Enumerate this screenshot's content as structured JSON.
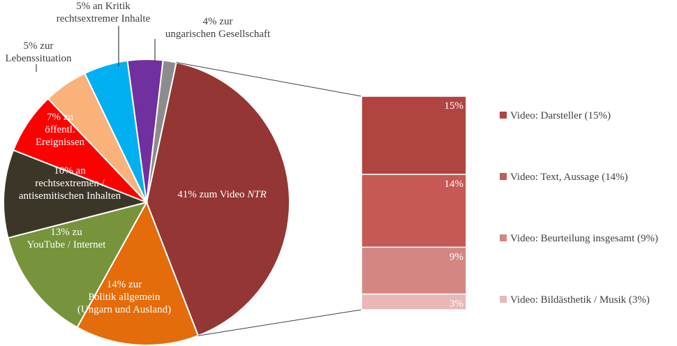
{
  "chart_data": {
    "type": "pie",
    "title": "",
    "slices": [
      {
        "label": "41% zum Video NTR",
        "label_lines": [
          "41% zum Video <i>NTR</i>"
        ],
        "value": 41,
        "color": "#943634",
        "label_color": "#ffffff",
        "label_inside": true
      },
      {
        "label": "14% zur Politik allgemein (Ungarn und Ausland)",
        "label_lines": [
          "14% zur",
          "Politik allgemein",
          "(Ungarn und Ausland)"
        ],
        "value": 14,
        "color": "#e46c0a",
        "label_color": "#ffffff",
        "label_inside": true
      },
      {
        "label": "13% zu YouTube / Internet",
        "label_lines": [
          "13% zu",
          "YouTube / Internet"
        ],
        "value": 13,
        "color": "#77933c",
        "label_color": "#ffffff",
        "label_inside": true
      },
      {
        "label": "10% an rechtsextremen / antisemitischen Inhalten",
        "label_lines": [
          "10% an",
          "rechtsextremen /",
          "antisemitischen  Inhalten"
        ],
        "value": 10,
        "color": "#3b3627",
        "label_color": "#ffffff",
        "label_inside": true
      },
      {
        "label": "7% zu öffentl. Ereignissen",
        "label_lines": [
          "7% zu",
          "öffentl.",
          "Ereignissen"
        ],
        "value": 7,
        "color": "#ff0000",
        "label_color": "#ffffff",
        "label_inside": true
      },
      {
        "label": "5% zur Lebenssituation",
        "label_lines": [
          "5% zur",
          "Lebenssituation"
        ],
        "value": 5,
        "color": "#fab17a",
        "label_color": "#404040",
        "label_inside": false
      },
      {
        "label": "5% an Kritik rechtsextremer Inhalte",
        "label_lines": [
          "5% an Kritik",
          "rechtsextremer  Inhalte"
        ],
        "value": 5,
        "color": "#00b0f0",
        "label_color": "#404040",
        "label_inside": false
      },
      {
        "label": "4% zur ungarischen Gesellschaft",
        "label_lines": [
          "4% zur",
          "ungarischen Gesellschaft"
        ],
        "value": 4,
        "color": "#7030a0",
        "label_color": "#404040",
        "label_inside": false
      },
      {
        "label": "",
        "label_lines": [],
        "value": 1.5,
        "color": "#8c8c8c",
        "label_color": "#404040",
        "label_inside": false
      }
    ],
    "breakdown": {
      "type": "stacked-bar",
      "of_slice": "41% zum Video NTR",
      "segments": [
        {
          "label": "15%",
          "value": 15,
          "color": "#b04441",
          "legend": "Video: Darsteller (15%)"
        },
        {
          "label": "14%",
          "value": 14,
          "color": "#c65955",
          "legend": "Video: Text, Aussage (14%)"
        },
        {
          "label": "9%",
          "value": 9,
          "color": "#d48683",
          "legend": "Video: Beurteilung insgesamt (9%)"
        },
        {
          "label": "3%",
          "value": 3,
          "color": "#e8b7b6",
          "legend": "Video: Bildästhetik / Musik (3%)"
        }
      ]
    },
    "legend_placement": "right"
  }
}
